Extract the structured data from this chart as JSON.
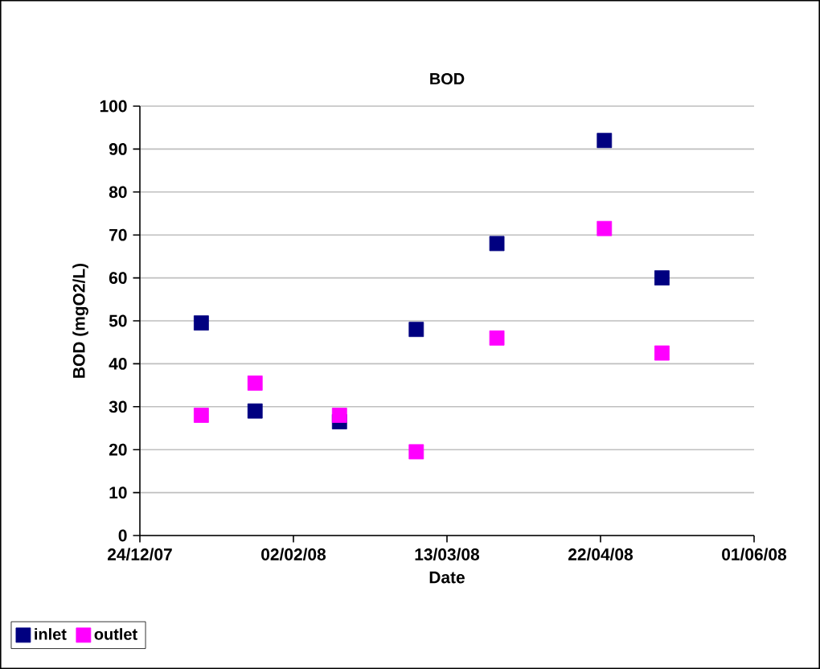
{
  "chart_data": {
    "type": "scatter",
    "title": "BOD",
    "xlabel": "Date",
    "ylabel": "BOD (mgO2/L)",
    "x": [
      "2008-01-09",
      "2008-01-23",
      "2008-02-14",
      "2008-03-05",
      "2008-03-26",
      "2008-04-23",
      "2008-05-08"
    ],
    "series": [
      {
        "name": "inlet",
        "color": "#000080",
        "values": [
          49.5,
          29,
          26.5,
          48,
          68,
          92,
          60
        ]
      },
      {
        "name": "outlet",
        "color": "#ff00ff",
        "values": [
          28,
          35.5,
          28,
          19.5,
          46,
          71.5,
          42.5
        ]
      }
    ],
    "xlim": [
      "2007-12-24",
      "2008-06-01"
    ],
    "xticks": [
      {
        "value": "2007-12-24",
        "label": "24/12/07"
      },
      {
        "value": "2008-02-02",
        "label": "02/02/08"
      },
      {
        "value": "2008-03-13",
        "label": "13/03/08"
      },
      {
        "value": "2008-04-22",
        "label": "22/04/08"
      },
      {
        "value": "2008-06-01",
        "label": "01/06/08"
      }
    ],
    "ylim": [
      0,
      100
    ],
    "yticks": [
      0,
      10,
      20,
      30,
      40,
      50,
      60,
      70,
      80,
      90,
      100
    ],
    "grid": "y",
    "legend": "bottom left",
    "marker": "square"
  }
}
